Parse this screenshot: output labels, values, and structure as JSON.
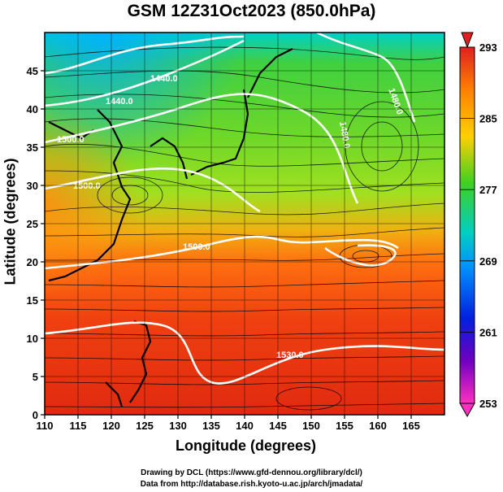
{
  "title": "GSM 12Z31Oct2023 (850.0hPa)",
  "xlabel": "Longitude (degrees)",
  "ylabel": "Latitude  (degrees)",
  "x_ticks": [
    "110",
    "115",
    "120",
    "125",
    "130",
    "135",
    "140",
    "145",
    "150",
    "155",
    "160",
    "165"
  ],
  "y_ticks": [
    "0",
    "5",
    "10",
    "15",
    "20",
    "25",
    "30",
    "35",
    "40",
    "45"
  ],
  "colorbar_ticks": [
    "293",
    "285",
    "277",
    "269",
    "261",
    "253"
  ],
  "contour_labels": [
    "1440.0",
    "1440.0",
    "1480.0",
    "1500.0",
    "1500.0",
    "1480.0",
    "1500.0",
    "1530.0"
  ],
  "footer_line1": "Drawing by DCL (https://www.gfd-dennou.org/library/dcl/)",
  "footer_line2": "Data from http://database.rish.kyoto-u.ac.jp/arch/jmadata/",
  "chart_data": {
    "type": "heatmap",
    "variable": "temperature with streamlines and geopotential height contours",
    "xlim": [
      110,
      170
    ],
    "ylim": [
      0,
      50
    ],
    "colorbar_range": [
      253,
      293
    ],
    "colors": {
      "cold": "#00c0ff",
      "cool": "#30c060",
      "mild": "#b0e020",
      "warm": "#ff8000",
      "hot": "#e83010",
      "contour": "#ffffff",
      "streamline": "#000000"
    }
  }
}
